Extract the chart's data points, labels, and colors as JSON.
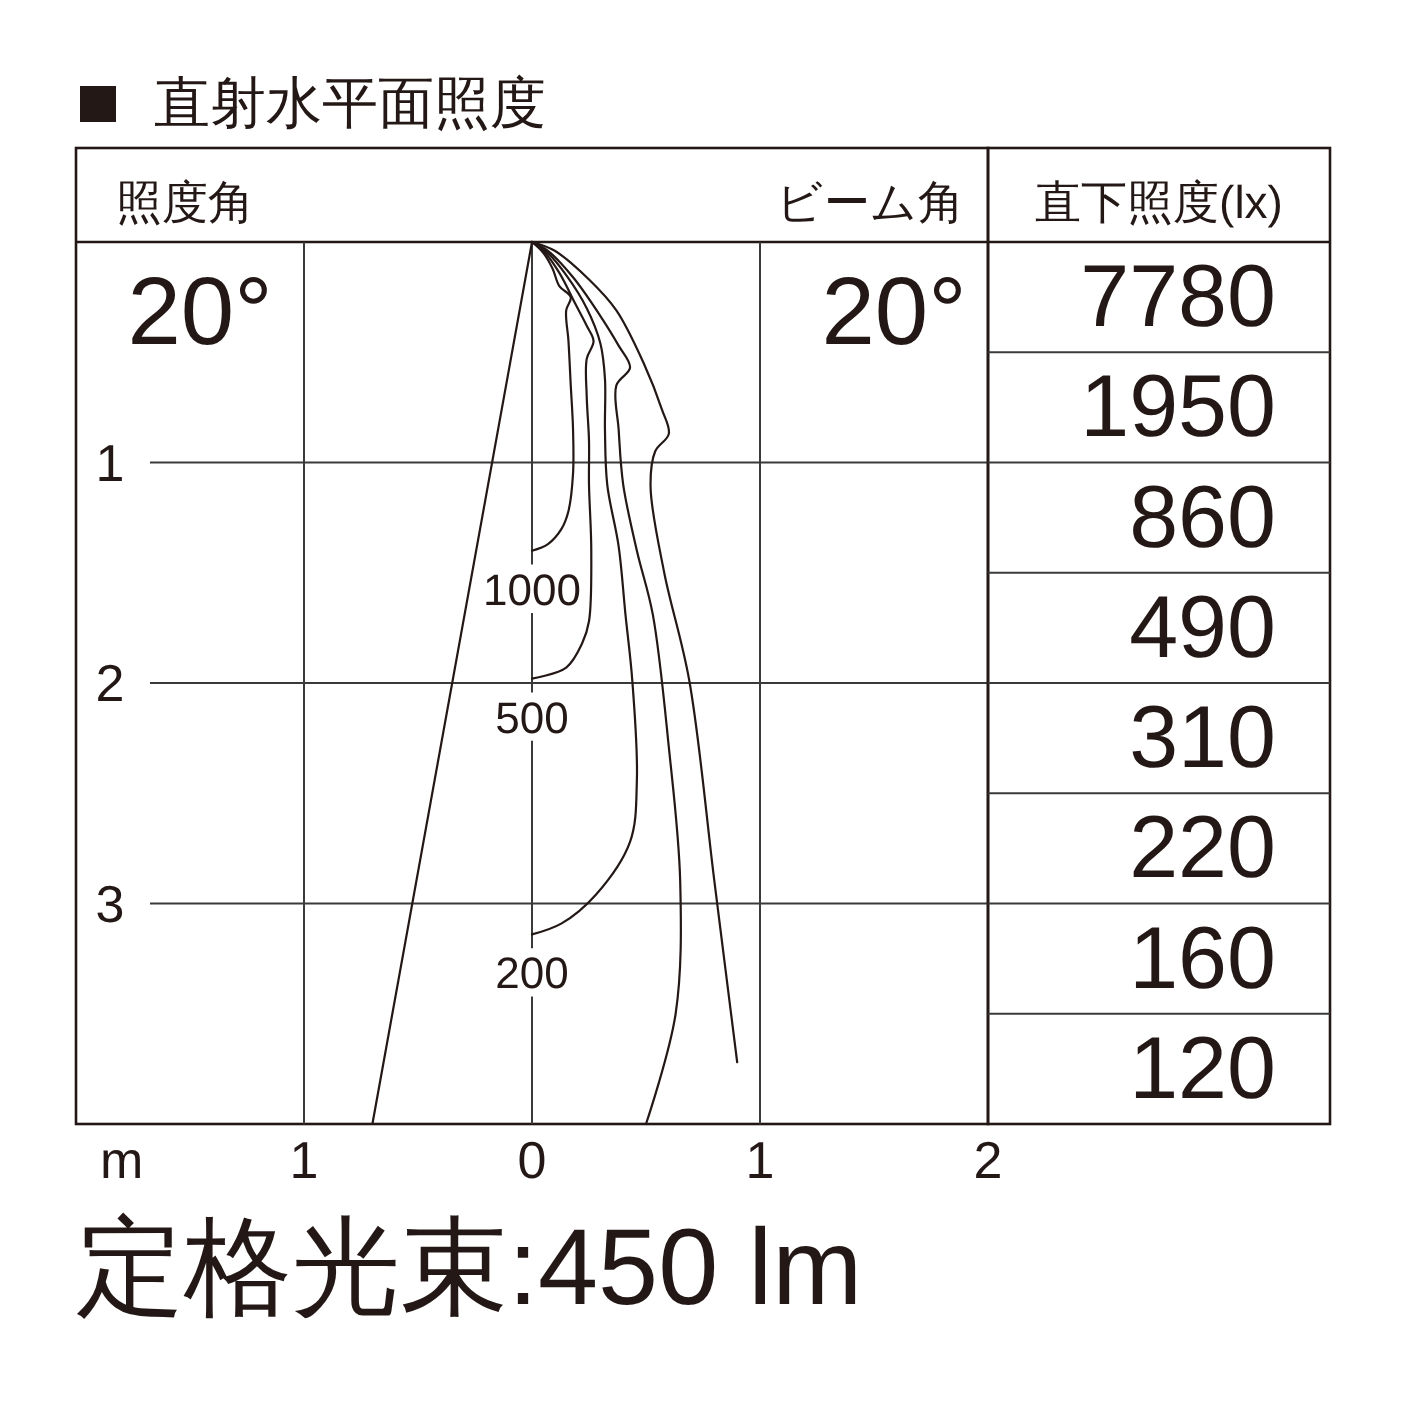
{
  "chart_data": [
    {
      "type": "line",
      "title": "直射水平面照度",
      "xlabel": "m",
      "xlim": [
        -2,
        2
      ],
      "xticks": [
        {
          "value": -1,
          "label": "1"
        },
        0,
        1,
        2
      ],
      "ylim": [
        4,
        0
      ],
      "yticks": [
        1,
        2,
        3
      ],
      "grid": true,
      "series": [
        {
          "color": "#231815",
          "x": [
            0,
            -0.7
          ],
          "values": [
            0,
            4
          ]
        },
        {
          "name": "1000",
          "color": "#231815",
          "x": [
            0,
            0.05,
            0.09,
            0.12,
            0.17,
            0.15,
            0.16,
            0.17,
            0.18,
            0.18,
            0.16,
            0.13,
            0.07,
            0
          ],
          "values": [
            0,
            0.05,
            0.12,
            0.2,
            0.25,
            0.31,
            0.45,
            0.65,
            0.85,
            1.05,
            1.22,
            1.3,
            1.37,
            1.4
          ]
        },
        {
          "name": "500",
          "color": "#231815",
          "x": [
            0,
            0.05,
            0.12,
            0.19,
            0.24,
            0.27,
            0.24,
            0.24,
            0.25,
            0.25,
            0.26,
            0.25,
            0.22,
            0.15,
            0
          ],
          "values": [
            0,
            0.04,
            0.14,
            0.28,
            0.38,
            0.45,
            0.53,
            0.7,
            0.9,
            1.1,
            1.4,
            1.72,
            1.82,
            1.93,
            1.98
          ]
        },
        {
          "name": "200",
          "color": "#231815",
          "x": [
            0,
            0.06,
            0.15,
            0.24,
            0.3,
            0.32,
            0.32,
            0.33,
            0.38,
            0.41,
            0.44,
            0.46,
            0.43,
            0.28,
            0.13,
            0
          ],
          "values": [
            0,
            0.04,
            0.15,
            0.3,
            0.46,
            0.62,
            0.85,
            1.1,
            1.38,
            1.69,
            1.99,
            2.44,
            2.72,
            2.96,
            3.09,
            3.14
          ]
        },
        {
          "color": "#231815",
          "x": [
            0,
            0.07,
            0.18,
            0.29,
            0.38,
            0.43,
            0.37,
            0.38,
            0.4,
            0.46,
            0.53,
            0.6,
            0.65,
            0.63,
            0.5
          ],
          "values": [
            0,
            0.04,
            0.16,
            0.32,
            0.47,
            0.57,
            0.65,
            0.85,
            1.1,
            1.4,
            1.69,
            2.29,
            2.9,
            3.5,
            4.0
          ]
        },
        {
          "color": "#231815",
          "x": [
            0,
            0.1,
            0.25,
            0.37,
            0.49,
            0.57,
            0.6,
            0.54,
            0.52,
            0.58,
            0.69,
            0.8,
            0.9
          ],
          "values": [
            0,
            0.04,
            0.17,
            0.31,
            0.55,
            0.76,
            0.87,
            0.95,
            1.11,
            1.5,
            1.99,
            2.9,
            3.72
          ]
        }
      ],
      "annotations": [
        "照度角",
        "20°",
        "ビーム角",
        "20°",
        "定格光束:450 lm"
      ]
    },
    {
      "type": "other",
      "title": "直下照度(lx)",
      "values": [
        7780,
        1950,
        860,
        490,
        310,
        220,
        160,
        120
      ],
      "data_labels": true
    }
  ]
}
